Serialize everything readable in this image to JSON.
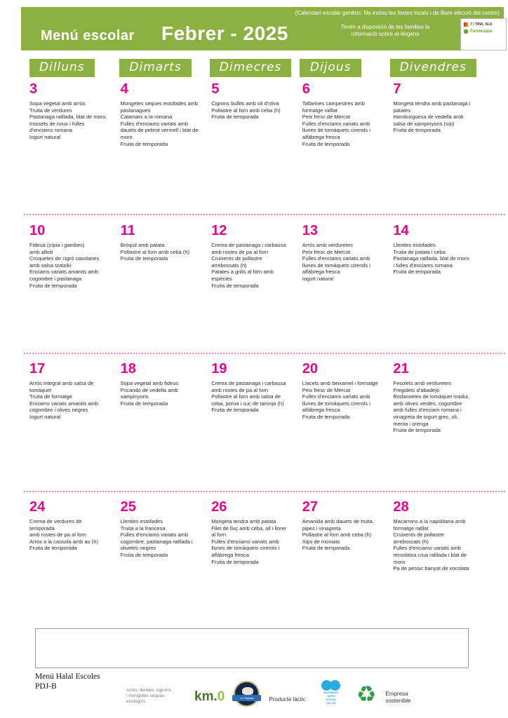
{
  "header": {
    "calendar_note": "(Calendari escolar genèric. No inclou les festes locals i de lliure elecció del centre)",
    "title": "Menú escolar",
    "month": "Febrer - 2025",
    "allergen_note": "Tenim a disposició de les families la\ninformació sobre al·lèrgens",
    "logo_line1": "7 i TRIA, SLU",
    "logo_line2": "Fundesplai"
  },
  "day_headers": [
    "Dilluns",
    "Dimarts",
    "Dimecres",
    "Dijous",
    "Divendres"
  ],
  "weeks": [
    {
      "days": [
        {
          "num": "3",
          "lines": [
            "Sopa vegetal amb arròs",
            "Truita de verdures",
            "Pastanaga ratllada, blat de moro,",
            " trossets de nous i fulles",
            "d'enciams romana",
            "Iogurt natural"
          ]
        },
        {
          "num": "4",
          "lines": [
            "Mongetes seques estofades amb",
            " pastanagues",
            "Calamars a la romana",
            "Fulles d'enciams variats amb",
            "dauets de pebrot vermell i blat de",
            " moro",
            "Fruita de temporada"
          ]
        },
        {
          "num": "5",
          "lines": [
            "Cigrons bullits amb oli d'oliva",
            "Pollastre al forn amb ceba (h)",
            "Fruita de temporada"
          ]
        },
        {
          "num": "6",
          "lines": [
            "Tallarines campestres amb",
            "formatge ratllat",
            "Peix fresc de Mercat",
            "Fulles d'enciams variats amb",
            "llunes de tomàquets cirerols i",
            "alfàbrega fresca",
            "Fruita de temporada"
          ]
        },
        {
          "num": "7",
          "lines": [
            "Mongeta tendra amb pastanaga i",
            " patates",
            "Hamburguesa de vedella amb",
            "salsa de xampinyons (s/p)",
            "Fruita de temporada"
          ]
        }
      ]
    },
    {
      "days": [
        {
          "num": "10",
          "lines": [
            "Fideuà (sípia i gambes)",
            "amb allioli",
            "Croquetes de cigró casolanes",
            "amb salsa tzatziki",
            "Enciams variats amanits amb",
            "cogombre i pastanaga",
            "Fruita de temporada"
          ]
        },
        {
          "num": "11",
          "lines": [
            "Bròquil amb patata",
            "Pollastre al forn amb ceba (h)",
            "Fruita de temporada"
          ]
        },
        {
          "num": "12",
          "lines": [
            "Crema de pastanaga i carbassa",
            "amb rostes de pa al forn",
            "Cruixents de pollastre",
            "arrebossats (h)",
            "Patates a grills al forn amb",
            "espècies",
            "Fruita de temporada"
          ]
        },
        {
          "num": "13",
          "lines": [
            "Arròs amb verduretes",
            "Peix fresc de Mercat",
            "Fulles d'enciams variats amb",
            "llunes de tomàquets cirerols i",
            "alfàbrega fresca",
            "Iogurt natural"
          ]
        },
        {
          "num": "14",
          "lines": [
            "Llenties estofades",
            "Truita de patata i ceba",
            "Pastanaga ratllada, blat de moro",
            "i fulles d'enciams romana",
            "Fruita de temporada"
          ]
        }
      ]
    },
    {
      "days": [
        {
          "num": "17",
          "lines": [
            "Arròs integral amb salsa de",
            "tomàquet",
            "Truita de formatge",
            "Enciams variats amanits amb",
            "cogombre i olives negres",
            "Iogurt natural"
          ]
        },
        {
          "num": "18",
          "lines": [
            "Sopa vegetal amb fideus",
            "Fricandó de vedella amb",
            "xampinyons",
            "Fruita de temporada"
          ]
        },
        {
          "num": "19",
          "lines": [
            "Crema de pastanaga i carbassa",
            "amb rostes de pa al forn",
            "Pollastre al forn amb salsa de",
            "ceba, poma i suc de taronja (h)",
            "Fruita de temporada"
          ]
        },
        {
          "num": "20",
          "lines": [
            "Llacets amb beixamel i formatge",
            "Peix fresc de Mercat",
            "Fulles d'enciams variats amb",
            "llunes de tomàquets cirerols i",
            "alfàbrega fresca",
            "Fruita de temporada"
          ]
        },
        {
          "num": "21",
          "lines": [
            "Fesolets amb verduretes",
            "Fregidets d'abadejo",
            "Rodanxetes de tomàquet madur,",
            " amb olives verdes, cogombre",
            "amb fulles d'enciam romana i",
            "vinagreta de iogurt grec, oli,",
            "menta i orenga",
            "Fruita de temporada"
          ]
        }
      ]
    },
    {
      "days": [
        {
          "num": "24",
          "lines": [
            "Crema de verdures de",
            "temporada",
            "amb rostes de pa al forn",
            "Arròs a la cassola amb au (h)",
            "Fruita de temporada"
          ]
        },
        {
          "num": "25",
          "lines": [
            "Llenties estofades",
            "Truita a la francesa",
            "Fulles d'enciams variats amb",
            "cogombre, pastanaga ratllada i",
            "olivetes negres",
            "Fruita de temporada"
          ]
        },
        {
          "num": "26",
          "lines": [
            "Mongeta tendra amb patata",
            "Filet de lluç amb ceba, all i llorer",
            "al forn",
            "Fulles d'enciams variats amb",
            "llunes de tomàquets cirerols i",
            "alfàbrega fresca",
            "Fruita de temporada"
          ]
        },
        {
          "num": "27",
          "lines": [
            "Amanida amb dauets de truita,",
            "pipes i vinagreta",
            "Pollastre al forn amb ceba (h)",
            "Xips de moniato",
            "Fruita de temporada"
          ]
        },
        {
          "num": "28",
          "lines": [
            "Macarrons a la napolitana amb",
            "formatge ratllat",
            "Cruixents de pollastre",
            "arrebossats (h)",
            "Fulles d'enciams variats amb",
            "remolatxa crua ratllada i blat de",
            "moro",
            "Pa de pessic banyat de xocolata"
          ]
        }
      ]
    }
  ],
  "footer": {
    "menu_name": "Menú Halal Escoles\nPDJ-B",
    "eco_note": "Arròs, llenties, cigrons\ni mongetes seques\necològics.",
    "km0_prefix": "km.",
    "km0_zero": "0",
    "badge_label": "La Fageda",
    "lactic_label": "Producte làctic",
    "business_label": "BUSINESS\nWITH\nSOCIAL\nVALUE",
    "recycle_icon": "♻",
    "sustainable_label": "Empresa\nsostenible"
  },
  "colors": {
    "green": "#8cb042",
    "magenta": "#ec008c",
    "dotted_separator": "#ee7fc5"
  }
}
